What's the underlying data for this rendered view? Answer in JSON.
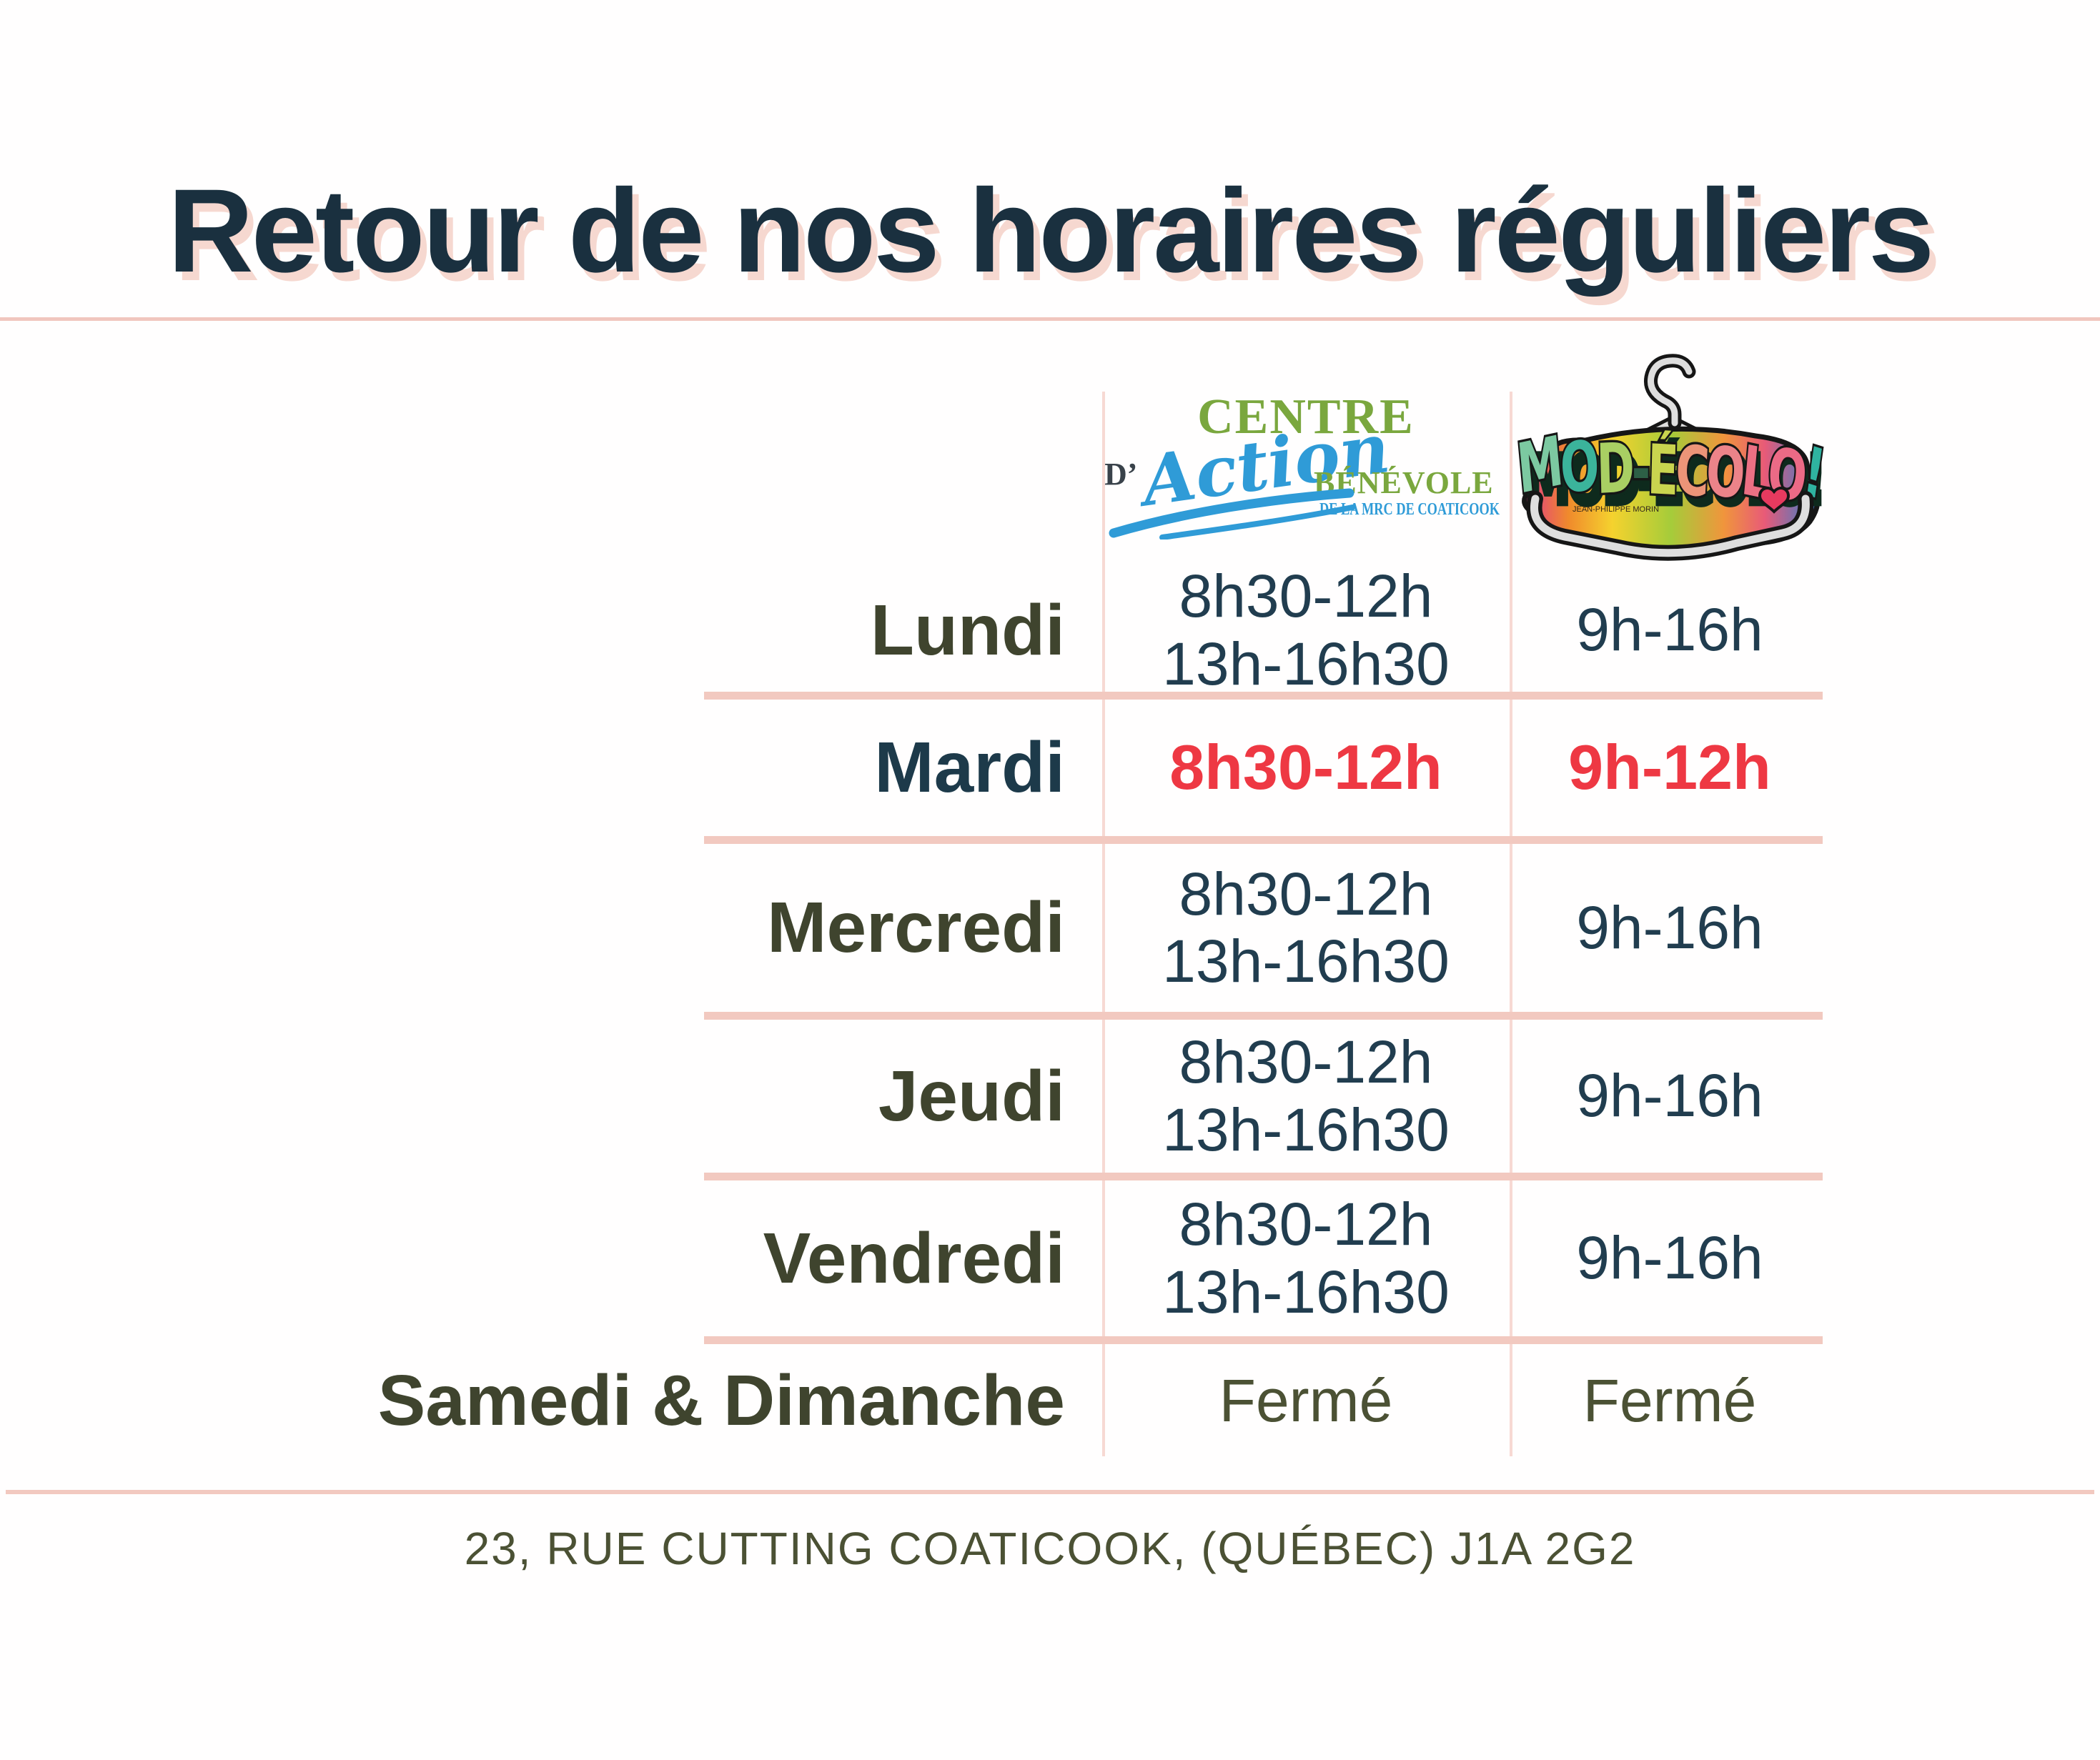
{
  "title": "Retour de nos horaires réguliers",
  "logos": {
    "cab": {
      "centre": "CENTRE",
      "d": "D’",
      "action": "Action",
      "benevole": "BÉNÉVOLE",
      "tagline": "DE LA MRC DE COATICOOK"
    },
    "modecolo": {
      "word": "MOD-ÉCOLO!",
      "signature": "JEAN-PHILIPPE MORIN",
      "letters": [
        {
          "ch": "M",
          "color": "#7cc9a1"
        },
        {
          "ch": "O",
          "color": "#3bb39b"
        },
        {
          "ch": "D",
          "color": "#a9cf63"
        },
        {
          "ch": "-",
          "color": "#2d5f46"
        },
        {
          "ch": "É",
          "color": "#c9d44f"
        },
        {
          "ch": "C",
          "color": "#ec9478"
        },
        {
          "ch": "O",
          "color": "#ec8389"
        },
        {
          "ch": "L",
          "color": "#ec7084"
        },
        {
          "ch": "O",
          "color": "#ec6a86"
        },
        {
          "ch": "!",
          "color": "#2fb3a0"
        }
      ]
    }
  },
  "table": {
    "rows": [
      {
        "day": "Lundi",
        "cab": [
          "8h30-12h",
          "13h-16h30"
        ],
        "mod": [
          "9h-16h"
        ],
        "style": "regular"
      },
      {
        "day": "Mardi",
        "cab": [
          "8h30-12h"
        ],
        "mod": [
          "9h-12h"
        ],
        "style": "highlight"
      },
      {
        "day": "Mercredi",
        "cab": [
          "8h30-12h",
          "13h-16h30"
        ],
        "mod": [
          "9h-16h"
        ],
        "style": "regular"
      },
      {
        "day": "Jeudi",
        "cab": [
          "8h30-12h",
          "13h-16h30"
        ],
        "mod": [
          "9h-16h"
        ],
        "style": "regular"
      },
      {
        "day": "Vendredi",
        "cab": [
          "8h30-12h",
          "13h-16h30"
        ],
        "mod": [
          "9h-16h"
        ],
        "style": "regular"
      },
      {
        "day": "Samedi & Dimanche",
        "cab": [
          "Fermé"
        ],
        "mod": [
          "Fermé"
        ],
        "style": "closed"
      }
    ]
  },
  "footer": {
    "address": "23, RUE CUTTING COATICOOK, (QUÉBEC) J1A 2G2"
  },
  "colors": {
    "title": "#1a303f",
    "title_shadow": "#f6d8d0",
    "line": "#f2c9c0",
    "line_top": "#f1c6be",
    "line_soft": "#f7d9d3",
    "day": "#3f442e",
    "day_highlight": "#1d3a4a",
    "time": "#213d4f",
    "time_highlight": "#ee3843",
    "closed": "#4b5134",
    "address": "#4b5134",
    "cab_green": "#7aa73e",
    "cab_blue": "#2f9bd7",
    "cab_dark": "#39424a"
  }
}
